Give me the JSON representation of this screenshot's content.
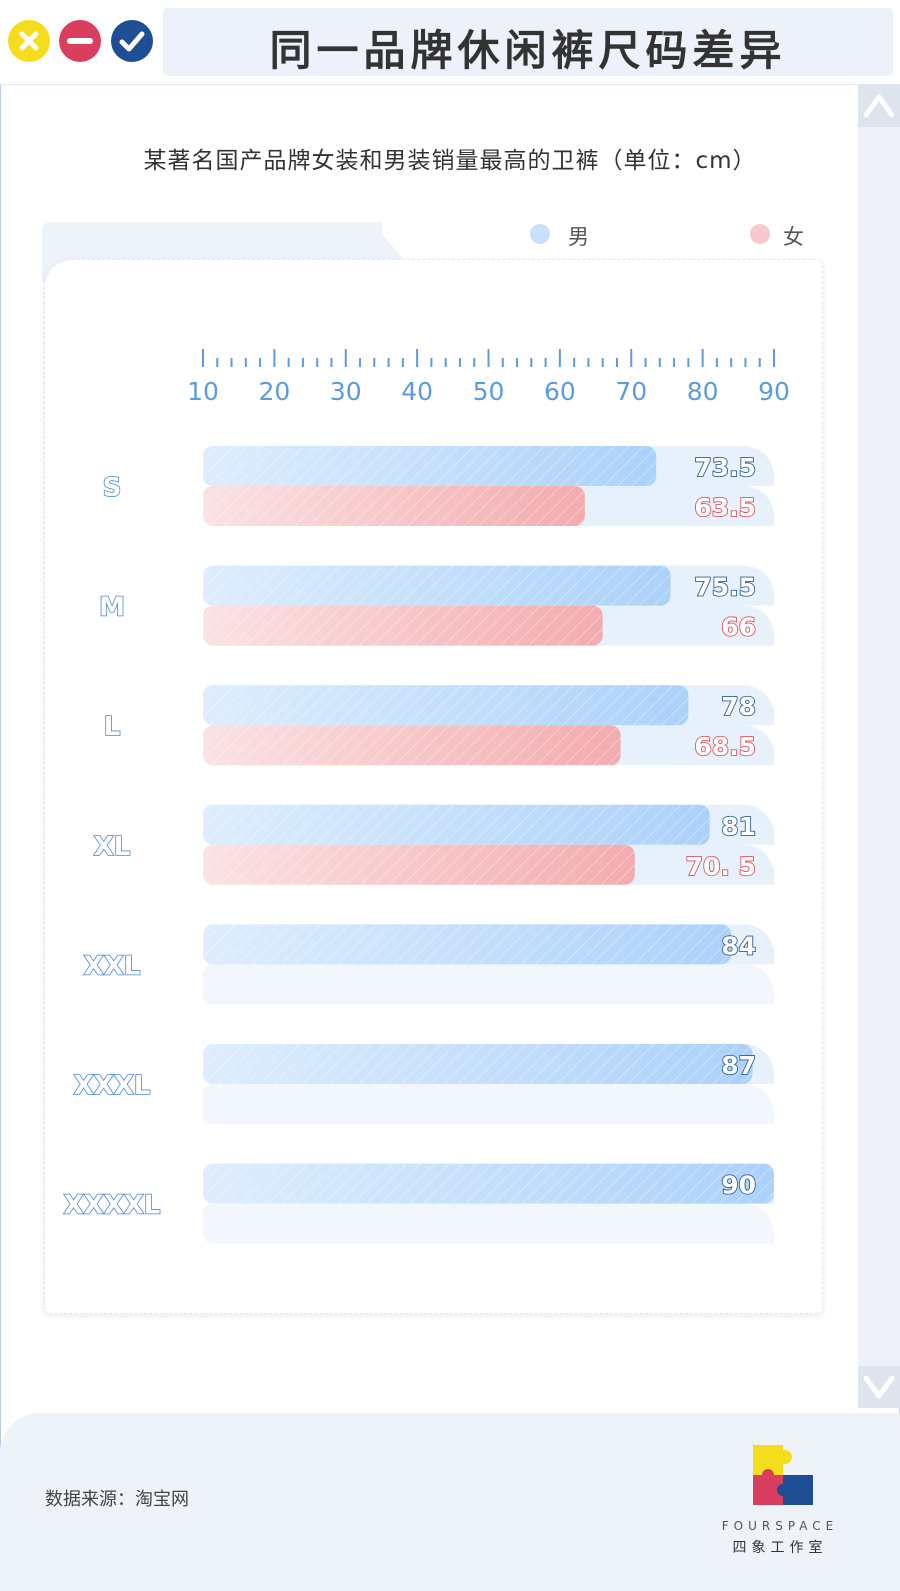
{
  "window": {
    "title": "同一品牌休闲裤尺码差异",
    "buttons": [
      {
        "name": "close",
        "color": "#f5dc1d"
      },
      {
        "name": "minimize",
        "color": "#d93e5f"
      },
      {
        "name": "confirm",
        "color": "#1e4e93"
      }
    ]
  },
  "legend": {
    "male_label": "男",
    "female_label": "女"
  },
  "source_text": "数据来源：淘宝网",
  "logo": {
    "text_en": "FOURSPACE",
    "text_cn": "四象工作室"
  },
  "colors": {
    "male_bar": "#b7d8fb",
    "female_bar": "#f5b4b7",
    "male_label": "#2d5f9c",
    "female_label": "#e0535b",
    "category_label": "#4a86d9",
    "axis": "#5b9be0"
  },
  "chart_data": {
    "type": "bar",
    "orientation": "horizontal",
    "title": "某著名国产品牌女装和男装销量最高的卫裤（单位：cm）",
    "categories": [
      "S",
      "M",
      "L",
      "XL",
      "XXL",
      "XXXL",
      "XXXXL"
    ],
    "series": [
      {
        "name": "男",
        "values": [
          73.5,
          75.5,
          78,
          81,
          84,
          87,
          90
        ],
        "labels": [
          "73.5",
          "75.5",
          "78",
          "81",
          "84",
          "87",
          "90"
        ]
      },
      {
        "name": "女",
        "values": [
          63.5,
          66,
          68.5,
          70.5,
          null,
          null,
          null
        ],
        "labels": [
          "63.5",
          "66",
          "68.5",
          "70. 5",
          "",
          "",
          ""
        ]
      }
    ],
    "x_ticks": [
      "10",
      "20",
      "30",
      "40",
      "50",
      "60",
      "70",
      "80",
      "90"
    ],
    "xlim": [
      10,
      90
    ],
    "xlabel": "",
    "ylabel": "",
    "legend_position": "top-right",
    "grid": false
  }
}
